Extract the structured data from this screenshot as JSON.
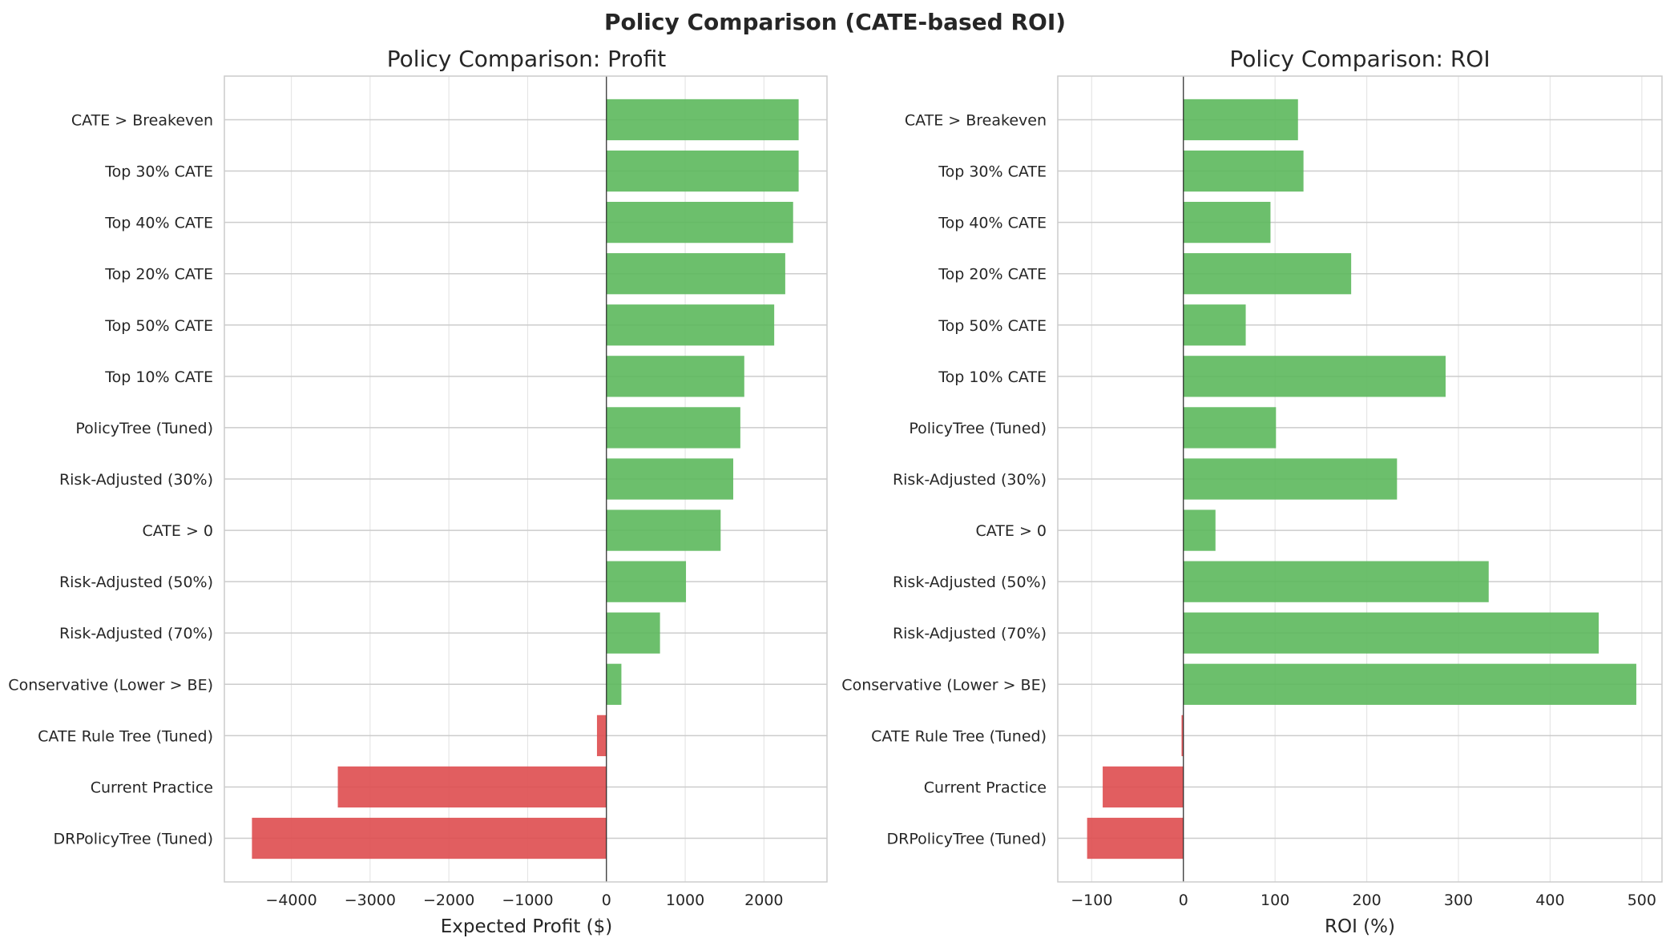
{
  "figure_title": "Policy Comparison (CATE-based ROI)",
  "colors": {
    "positive": "#5cb85c",
    "negative": "#de4c4f",
    "grid": "#e6e6e6",
    "zero_line": "#262626",
    "frame": "#cccccc"
  },
  "chart_data": [
    {
      "type": "bar",
      "orientation": "horizontal",
      "title": "Policy Comparison: Profit",
      "xlabel": "Expected Profit ($)",
      "ylabel": "",
      "categories": [
        "CATE > Breakeven",
        "Top 30% CATE",
        "Top 40% CATE",
        "Top 20% CATE",
        "Top 50% CATE",
        "Top 10% CATE",
        "PolicyTree (Tuned)",
        "Risk-Adjusted (30%)",
        "CATE > 0",
        "Risk-Adjusted (50%)",
        "Risk-Adjusted (70%)",
        "Conservative (Lower > BE)",
        "CATE Rule Tree (Tuned)",
        "Current Practice",
        "DRPolicyTree (Tuned)"
      ],
      "values": [
        2440,
        2440,
        2370,
        2270,
        2130,
        1750,
        1700,
        1610,
        1450,
        1010,
        680,
        190,
        -120,
        -3410,
        -4500
      ],
      "xlim": [
        -4850,
        2800
      ],
      "xticks": [
        -4000,
        -3000,
        -2000,
        -1000,
        0,
        1000,
        2000
      ],
      "xtick_labels": [
        "−4000",
        "−3000",
        "−2000",
        "−1000",
        "0",
        "1000",
        "2000"
      ],
      "grid": true
    },
    {
      "type": "bar",
      "orientation": "horizontal",
      "title": "Policy Comparison: ROI",
      "xlabel": "ROI (%)",
      "ylabel": "",
      "categories": [
        "CATE > Breakeven",
        "Top 30% CATE",
        "Top 40% CATE",
        "Top 20% CATE",
        "Top 50% CATE",
        "Top 10% CATE",
        "PolicyTree (Tuned)",
        "Risk-Adjusted (30%)",
        "CATE > 0",
        "Risk-Adjusted (50%)",
        "Risk-Adjusted (70%)",
        "Conservative (Lower > BE)",
        "CATE Rule Tree (Tuned)",
        "Current Practice",
        "DRPolicyTree (Tuned)"
      ],
      "values": [
        125,
        131,
        95,
        183,
        68,
        286,
        101,
        233,
        35,
        333,
        453,
        494,
        -2,
        -88,
        -105
      ],
      "xlim": [
        -137,
        522
      ],
      "xticks": [
        -100,
        0,
        100,
        200,
        300,
        400,
        500
      ],
      "xtick_labels": [
        "−100",
        "0",
        "100",
        "200",
        "300",
        "400",
        "500"
      ],
      "grid": true
    }
  ]
}
